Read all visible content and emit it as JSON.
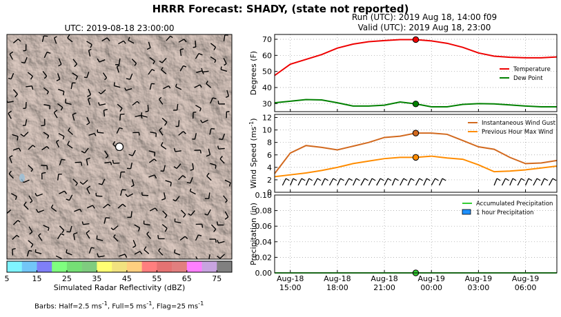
{
  "header": {
    "title": "HRRR Forecast: SHADY, (state not reported)",
    "run_label": "Run (UTC): 2019 Aug 18, 14:00 f09",
    "valid_label": "Valid (UTC): 2019 Aug 18, 23:00"
  },
  "map": {
    "title": "UTC: 2019-08-18 23:00:00",
    "colorbar": {
      "label": "Simulated Radar Reflectivity (dBZ)",
      "tick_labels": [
        "5",
        "15",
        "25",
        "35",
        "45",
        "55",
        "65",
        "75"
      ],
      "colors": [
        "#7ff4ff",
        "#72c6f7",
        "#7f7ff7",
        "#7fff7f",
        "#75df75",
        "#7fcc7f",
        "#ffff72",
        "#f2e27f",
        "#ffcf7f",
        "#ff7f7f",
        "#e57272",
        "#e27f7f",
        "#ff7fff",
        "#c8a4e0",
        "#808080"
      ]
    },
    "barbs_note": {
      "pre": "Barbs: Half=2.5 ms",
      "exp1": "-1",
      "mid1": ", Full=5 ms",
      "exp2": "-1",
      "mid2": ", Flag=25 ms",
      "exp3": "-1"
    }
  },
  "chart_data": [
    {
      "type": "line",
      "ylabel": "Degrees (F)",
      "ylim": [
        25,
        73
      ],
      "yticks": [
        30,
        40,
        50,
        60,
        70
      ],
      "grid": true,
      "legend_position": "right",
      "x_hours": [
        0,
        1,
        2,
        3,
        4,
        5,
        6,
        7,
        8,
        9,
        10,
        11,
        12,
        13,
        14,
        15,
        16,
        17,
        18
      ],
      "series": [
        {
          "name": "Temperature",
          "color": "#ee0000",
          "values": [
            47.5,
            54.5,
            57.5,
            60.5,
            64.5,
            67,
            68.5,
            69.2,
            69.8,
            69.8,
            69,
            67.5,
            65,
            61.5,
            59.5,
            58.8,
            58.5,
            58.5,
            59
          ]
        },
        {
          "name": "Dew Point",
          "color": "#008000",
          "values": [
            30.5,
            31.5,
            32.5,
            32.3,
            30.5,
            28.5,
            28.5,
            29,
            31,
            29.8,
            28,
            28,
            29.5,
            30,
            29.8,
            29.2,
            28.5,
            28,
            28
          ]
        }
      ],
      "marker_index": 9
    },
    {
      "type": "line",
      "ylabel": "Wind Speed (ms",
      "ylabel_exp": "-1",
      "ylabel_end": ")",
      "ylim": [
        0,
        12.5
      ],
      "yticks": [
        0,
        2,
        4,
        6,
        8,
        10,
        12
      ],
      "grid": true,
      "legend_position": "top-right",
      "x_hours": [
        0,
        1,
        2,
        3,
        4,
        5,
        6,
        7,
        8,
        9,
        10,
        11,
        12,
        13,
        14,
        15,
        16,
        17,
        18
      ],
      "series": [
        {
          "name": "Instantaneous Wind Gust",
          "color": "#d2691e",
          "values": [
            3,
            6.3,
            7.5,
            7.2,
            6.8,
            7.4,
            8,
            8.8,
            9,
            9.5,
            9.5,
            9.3,
            8.3,
            7.3,
            6.9,
            5.6,
            4.6,
            4.7,
            5.1
          ]
        },
        {
          "name": "Previous Hour Max Wind",
          "color": "#ff8c00",
          "values": [
            2.5,
            2.8,
            3.1,
            3.5,
            4,
            4.6,
            5,
            5.4,
            5.6,
            5.6,
            5.8,
            5.5,
            5.3,
            4.4,
            3.3,
            3.4,
            3.6,
            3.9,
            4.2
          ]
        }
      ],
      "marker_index": 9
    },
    {
      "type": "line",
      "ylabel": "Precipitation (in)",
      "ylim": [
        0,
        0.1
      ],
      "yticks": [
        "0.00",
        "0.02",
        "0.04",
        "0.06",
        "0.08",
        "0.10"
      ],
      "grid": true,
      "legend_position": "top-right",
      "x_tick_labels": [
        [
          "Aug-18",
          "15:00"
        ],
        [
          "Aug-18",
          "18:00"
        ],
        [
          "Aug-18",
          "21:00"
        ],
        [
          "Aug-19",
          "00:00"
        ],
        [
          "Aug-19",
          "03:00"
        ],
        [
          "Aug-19",
          "06:00"
        ]
      ],
      "x_tick_hours": [
        1,
        4,
        7,
        10,
        13,
        16
      ],
      "series": [
        {
          "name": "Accumulated Precipitation",
          "color": "#32cd32",
          "values": [
            0,
            0,
            0,
            0,
            0,
            0,
            0,
            0,
            0,
            0,
            0,
            0,
            0,
            0,
            0,
            0,
            0,
            0,
            0
          ]
        },
        {
          "name": "1 hour Precipitation",
          "color": "#1e90ff",
          "values": [
            0,
            0,
            0,
            0,
            0,
            0,
            0,
            0,
            0,
            0,
            0,
            0,
            0,
            0,
            0,
            0,
            0,
            0,
            0
          ]
        }
      ],
      "marker_index": 9
    }
  ]
}
